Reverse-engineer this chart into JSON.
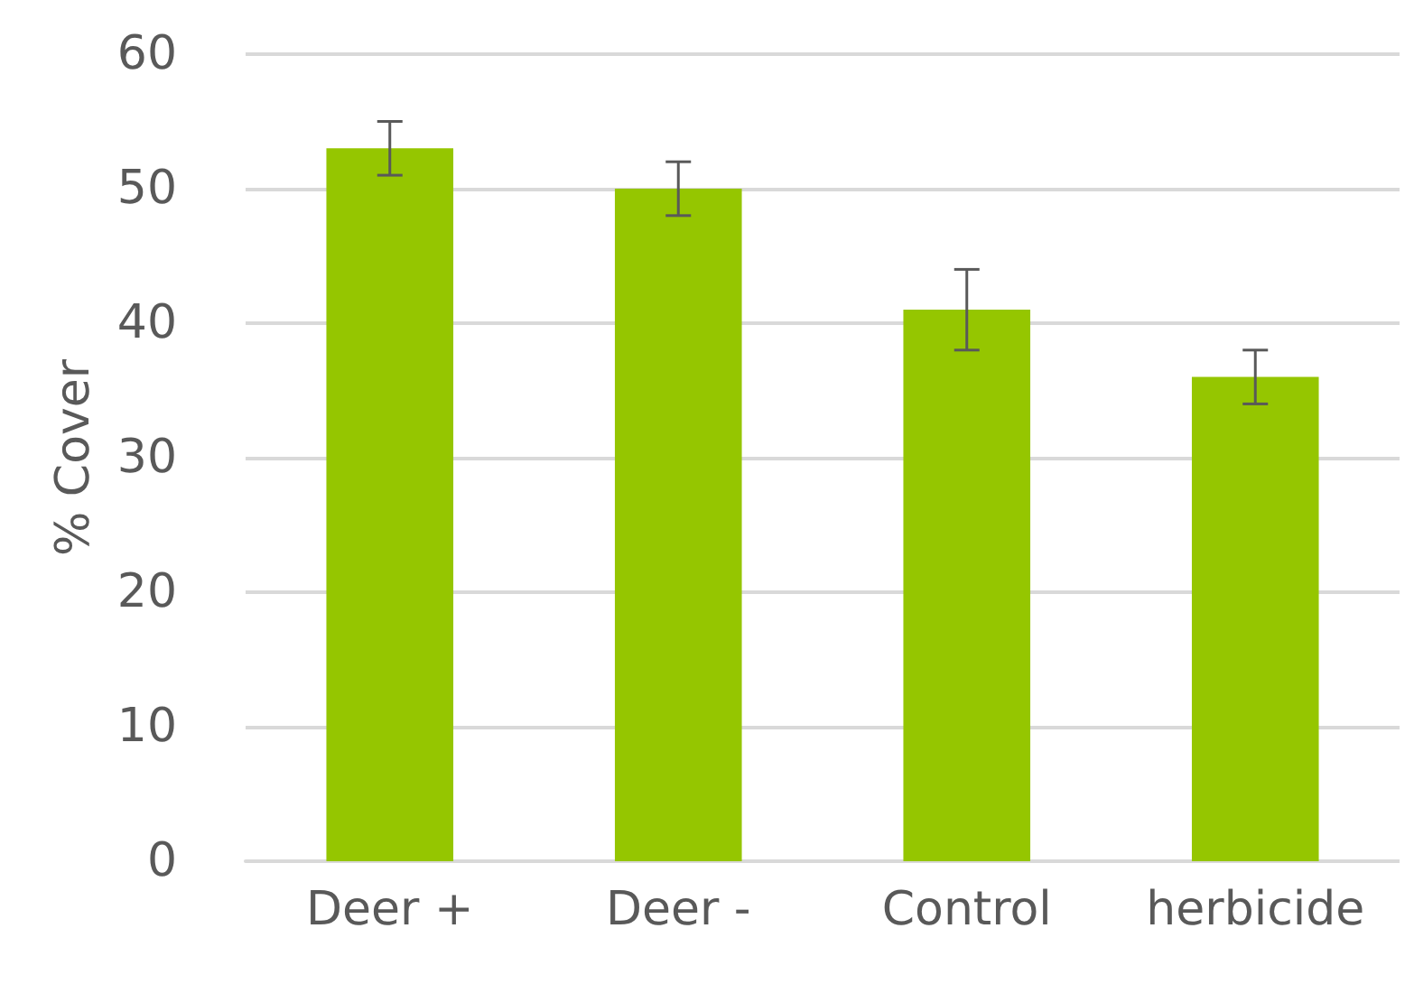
{
  "chart_data": {
    "type": "bar",
    "ylabel": "% Cover",
    "categories": [
      "Deer +",
      "Deer -",
      "Control",
      "herbicide"
    ],
    "values": [
      53,
      50,
      41,
      36
    ],
    "errors": [
      2,
      2,
      [
        38,
        44
      ],
      2
    ],
    "color": "#95c600",
    "ylim": [
      0,
      60
    ],
    "yticks": [
      0,
      10,
      20,
      30,
      40,
      50,
      60
    ],
    "grid": "y"
  }
}
